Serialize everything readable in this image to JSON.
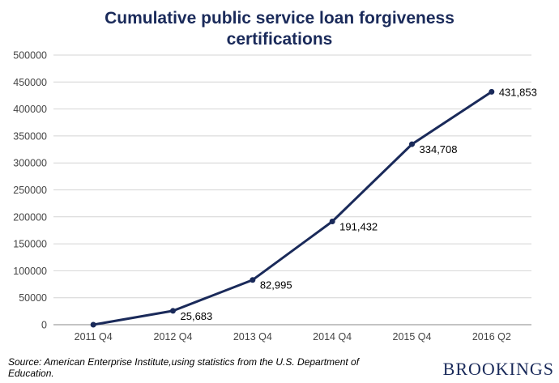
{
  "chart_data": {
    "type": "line",
    "title_line1": "Cumulative public service loan forgiveness",
    "title_line2": "certifications",
    "categories": [
      "2011 Q4",
      "2012 Q4",
      "2013 Q4",
      "2014 Q4",
      "2015 Q4",
      "2016 Q2"
    ],
    "values": [
      0,
      25683,
      82995,
      191432,
      334708,
      431853
    ],
    "data_labels": [
      "",
      "25,683",
      "82,995",
      "191,432",
      "334,708",
      "431,853"
    ],
    "y_ticks": [
      "0",
      "50000",
      "100000",
      "150000",
      "200000",
      "250000",
      "300000",
      "350000",
      "400000",
      "450000",
      "500000"
    ],
    "ylim": [
      0,
      500000
    ],
    "grid": true,
    "line_color": "#1a2a5a"
  },
  "footer": {
    "source": "Source: American Enterprise Institute,using statistics from the U.S. Department of Education.",
    "logo": "BROOKINGS"
  }
}
